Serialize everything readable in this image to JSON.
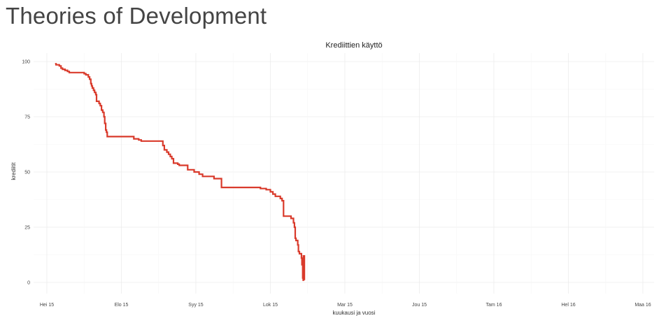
{
  "page": {
    "title": "Theories of Development"
  },
  "chart_data": {
    "type": "line",
    "title": "Krediittien käyttö",
    "xlabel": "kuukausi ja vuosi",
    "ylabel": "krediitit",
    "ylim": [
      0,
      100
    ],
    "yticks": [
      0,
      25,
      50,
      75,
      100
    ],
    "xtick_labels": [
      "Hei 15",
      "Elo 15",
      "Syy 15",
      "Lok 15",
      "Mar 15",
      "Jou 15",
      "Tam 16",
      "Hel 16",
      "Maa 16"
    ],
    "x_unit": "months since Hei 15 tick",
    "grid": true,
    "legend": "none",
    "series": [
      {
        "color": "#d93a2b",
        "step": true,
        "points": [
          [
            0.33,
            99
          ],
          [
            0.37,
            98.5
          ],
          [
            0.5,
            98
          ],
          [
            0.57,
            97
          ],
          [
            0.63,
            96.5
          ],
          [
            0.73,
            96
          ],
          [
            0.83,
            95.5
          ],
          [
            0.9,
            95
          ],
          [
            1.2,
            95
          ],
          [
            1.4,
            95
          ],
          [
            1.5,
            94.5
          ],
          [
            1.57,
            94
          ],
          [
            1.67,
            93
          ],
          [
            1.72,
            92
          ],
          [
            1.77,
            90
          ],
          [
            1.8,
            89
          ],
          [
            1.83,
            88
          ],
          [
            1.88,
            87
          ],
          [
            1.92,
            86
          ],
          [
            1.97,
            85
          ],
          [
            2.0,
            82
          ],
          [
            2.1,
            81
          ],
          [
            2.15,
            80
          ],
          [
            2.2,
            78
          ],
          [
            2.25,
            77
          ],
          [
            2.3,
            75
          ],
          [
            2.33,
            72
          ],
          [
            2.37,
            69
          ],
          [
            2.4,
            68
          ],
          [
            2.43,
            66
          ],
          [
            2.9,
            66
          ],
          [
            3.3,
            66
          ],
          [
            3.5,
            65
          ],
          [
            3.7,
            64.5
          ],
          [
            3.8,
            64
          ],
          [
            4.0,
            64
          ],
          [
            4.33,
            64
          ],
          [
            4.63,
            64
          ],
          [
            4.67,
            62
          ],
          [
            4.73,
            60
          ],
          [
            4.83,
            59
          ],
          [
            4.9,
            58
          ],
          [
            4.97,
            57
          ],
          [
            5.03,
            56
          ],
          [
            5.1,
            54
          ],
          [
            5.2,
            54
          ],
          [
            5.27,
            53.5
          ],
          [
            5.33,
            53
          ],
          [
            5.5,
            53
          ],
          [
            5.63,
            53
          ],
          [
            5.67,
            51
          ],
          [
            5.8,
            51
          ],
          [
            5.93,
            50
          ],
          [
            6.0,
            50
          ],
          [
            6.13,
            49
          ],
          [
            6.27,
            48
          ],
          [
            6.4,
            48
          ],
          [
            6.57,
            48
          ],
          [
            6.73,
            47
          ],
          [
            6.83,
            47
          ],
          [
            7.0,
            47
          ],
          [
            7.03,
            43
          ],
          [
            7.3,
            43
          ],
          [
            8.0,
            43
          ],
          [
            8.4,
            43
          ],
          [
            8.6,
            42.5
          ],
          [
            8.83,
            42
          ],
          [
            9.0,
            41
          ],
          [
            9.1,
            40
          ],
          [
            9.2,
            39
          ],
          [
            9.3,
            39
          ],
          [
            9.4,
            38
          ],
          [
            9.47,
            37
          ],
          [
            9.53,
            30
          ],
          [
            9.6,
            30
          ],
          [
            9.7,
            30
          ],
          [
            9.83,
            29
          ],
          [
            9.93,
            27
          ],
          [
            9.97,
            25
          ],
          [
            10.0,
            20
          ],
          [
            10.03,
            19
          ],
          [
            10.1,
            17
          ],
          [
            10.13,
            14
          ],
          [
            10.17,
            13
          ],
          [
            10.22,
            13
          ],
          [
            10.25,
            11
          ],
          [
            10.27,
            8
          ],
          [
            10.3,
            2
          ],
          [
            10.32,
            1
          ],
          [
            10.33,
            12
          ],
          [
            10.37,
            1
          ]
        ]
      }
    ]
  }
}
